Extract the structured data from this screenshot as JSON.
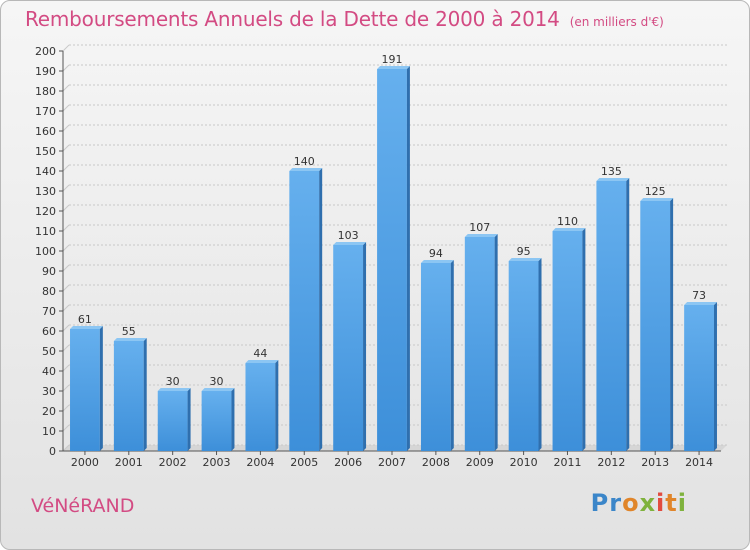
{
  "title": "Remboursements Annuels de la Dette de 2000 à 2014",
  "subtitle": "(en milliers d'€)",
  "commune": "VéNéRAND",
  "logo": {
    "p1": "Pr",
    "p2": "o",
    "p3": "x",
    "p4": "i",
    "p5": "t",
    "p6": "i"
  },
  "colors": {
    "bar": "#3d8fd9",
    "bar_light": "#66b0ee",
    "title": "#d34b83",
    "grid": "#c8c8c8"
  },
  "chart_data": {
    "type": "bar",
    "categories": [
      "2000",
      "2001",
      "2002",
      "2003",
      "2004",
      "2005",
      "2006",
      "2007",
      "2008",
      "2009",
      "2010",
      "2011",
      "2012",
      "2013",
      "2014"
    ],
    "values": [
      61,
      55,
      30,
      30,
      44,
      140,
      103,
      191,
      94,
      107,
      95,
      110,
      135,
      125,
      73
    ],
    "ylim": [
      0,
      200
    ],
    "ytick_step": 10,
    "xlabel": "",
    "ylabel": "",
    "grid": true,
    "data_labels": true
  }
}
